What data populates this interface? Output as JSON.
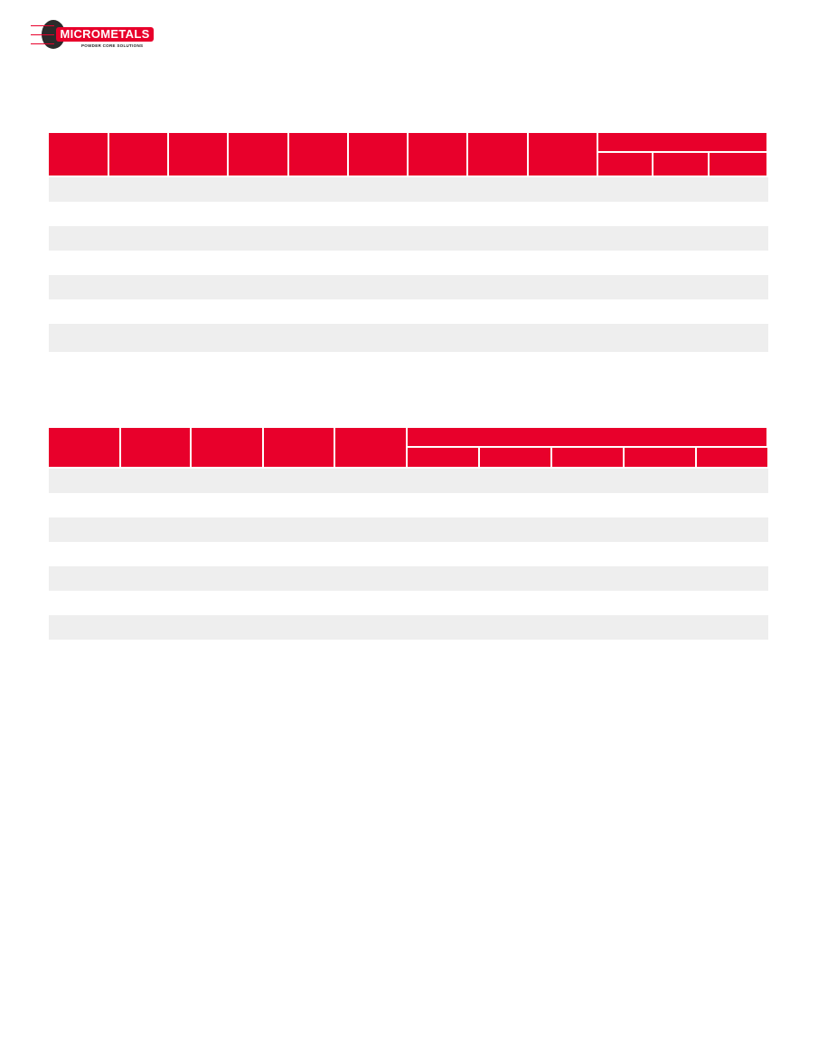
{
  "logo": {
    "name": "MICROMETALS",
    "tagline": "POWDER CORE SOLUTIONS",
    "brand_color": "#e8002b"
  },
  "table_1": {
    "header_columns": 9,
    "grouped_header_subcolumns": 3,
    "body_rows": 7,
    "header_color": "#e8002b",
    "stripe_color": "#eeeeee"
  },
  "table_2": {
    "header_columns": 5,
    "grouped_header_subcolumns": 5,
    "body_rows": 7,
    "header_color": "#e8002b",
    "stripe_color": "#eeeeee"
  }
}
